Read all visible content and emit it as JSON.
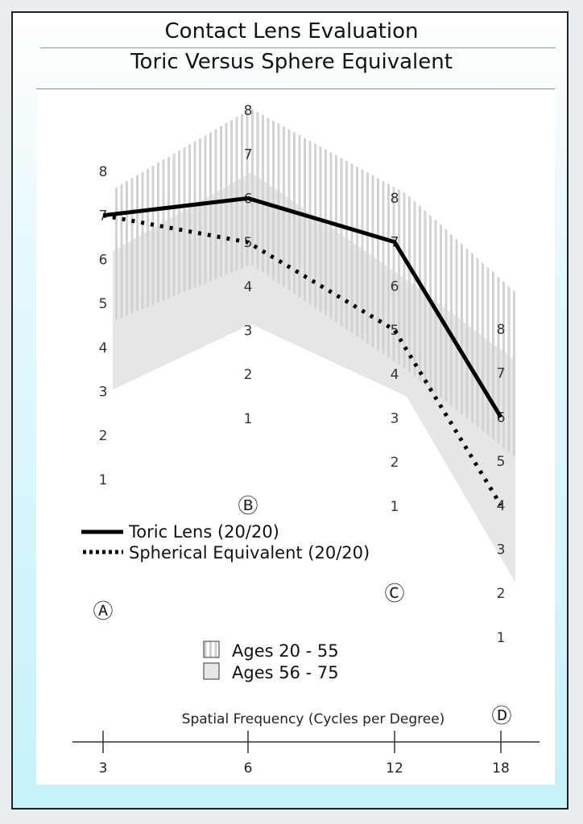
{
  "title": "Contact Lens Evaluation",
  "subtitle": "Toric Versus Sphere Equivalent",
  "chart_data": {
    "type": "line",
    "xlabel": "Spatial Frequency (Cycles per Degree)",
    "x": [
      3,
      6,
      12,
      18
    ],
    "x_tick_labels": [
      "3",
      "6",
      "12",
      "18"
    ],
    "column_markers": [
      "Ⓐ",
      "Ⓑ",
      "Ⓒ",
      "Ⓓ"
    ],
    "column_scale_labels": [
      "1",
      "2",
      "3",
      "4",
      "5",
      "6",
      "7",
      "8"
    ],
    "series": [
      {
        "name": "Toric Lens (20/20)",
        "style": "solid",
        "values": [
          7,
          6,
          7,
          6
        ]
      },
      {
        "name": "Spherical Equivalent (20/20)",
        "style": "dotted",
        "values": [
          7,
          5,
          5,
          4
        ]
      }
    ],
    "bands": [
      {
        "name": "Ages 20 - 55",
        "fill": "hatched",
        "upper": [
          7.7,
          8.15,
          8.2,
          8.75
        ],
        "lower": [
          4.7,
          4.6,
          4.2,
          5.2
        ]
      },
      {
        "name": "Ages 56 - 75",
        "fill": "solid",
        "upper": [
          6.3,
          6.7,
          6.25,
          7.2
        ],
        "lower": [
          3.15,
          3.25,
          3.6,
          2.35
        ]
      }
    ],
    "colors": {
      "line": "#000000",
      "band_hatch": "#d2d2d4",
      "band_solid": "#e6e6e8",
      "accent": "#4fb3c4"
    },
    "grid": false
  }
}
